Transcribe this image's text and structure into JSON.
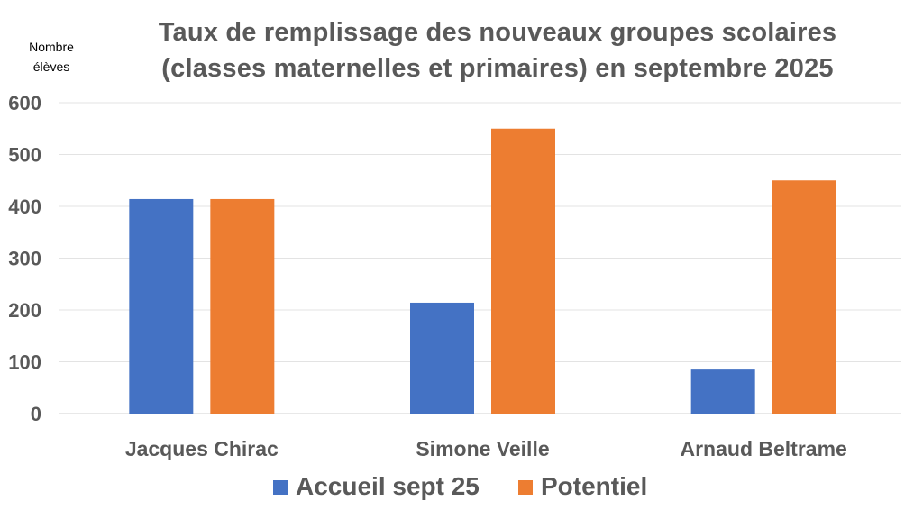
{
  "chart_data": {
    "type": "bar",
    "title_lines": [
      "Taux de remplissage des nouveaux groupes scolaires",
      "(classes maternelles et primaires) en septembre 2025"
    ],
    "ylabel_lines": [
      "Nombre",
      "élèves"
    ],
    "xlabel": "",
    "categories": [
      "Jacques Chirac",
      "Simone Veille",
      "Arnaud Beltrame"
    ],
    "series": [
      {
        "name": "Accueil sept 25",
        "color": "#4472C4",
        "values": [
          414,
          214,
          85
        ]
      },
      {
        "name": "Potentiel",
        "color": "#ED7D31",
        "values": [
          414,
          550,
          450
        ]
      }
    ],
    "ylim": [
      0,
      600
    ],
    "yticks": [
      0,
      100,
      200,
      300,
      400,
      500,
      600
    ],
    "grid": true,
    "legend_position": "bottom"
  }
}
